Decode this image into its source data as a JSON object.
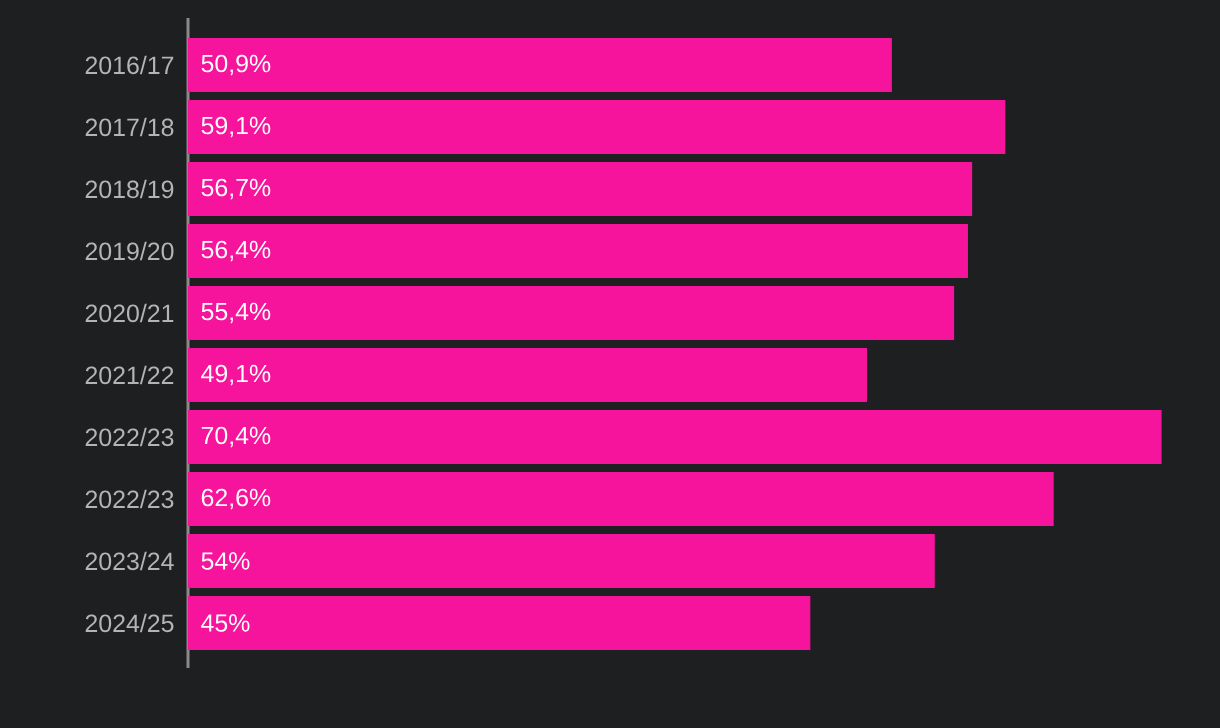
{
  "chart_data": {
    "type": "bar",
    "orientation": "horizontal",
    "categories": [
      "2016/17",
      "2017/18",
      "2018/19",
      "2019/20",
      "2020/21",
      "2021/22",
      "2022/23",
      "2022/23",
      "2023/24",
      "2024/25"
    ],
    "values": [
      50.9,
      59.1,
      56.7,
      56.4,
      55.4,
      49.1,
      70.4,
      62.6,
      54,
      45
    ],
    "value_labels": [
      "50,9%",
      "59,1%",
      "56,7%",
      "56,4%",
      "55,4%",
      "49,1%",
      "70,4%",
      "62,6%",
      "54%",
      "45%"
    ],
    "color": "#f5149b"
  }
}
